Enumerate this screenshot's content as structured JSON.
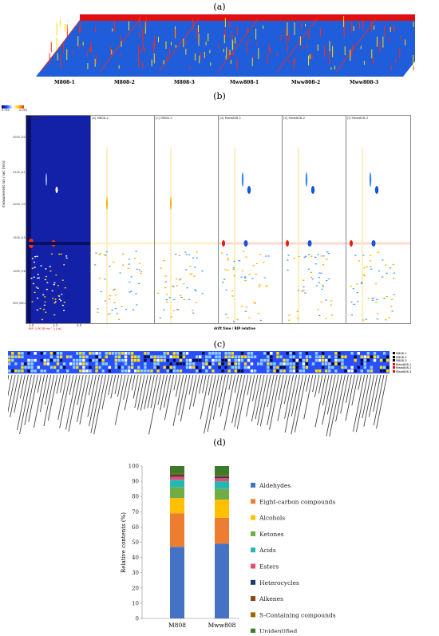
{
  "panels": {
    "a": "(a)",
    "b": "(b)",
    "c": "(c)",
    "d": "(d)"
  },
  "panel_a": {
    "samples": [
      "M808-1",
      "M808-2",
      "M808-3",
      "Mww808-1",
      "Mww808-2",
      "Mww808-3"
    ]
  },
  "panel_b": {
    "colorbar_min": "0.9E0",
    "colorbar_max": "2.0E0",
    "y_label": "measurement run / sec [min]",
    "y_ticks": [
      "3000 (50:00)",
      "2500 (41:40)",
      "2000 (33:20)",
      "1500 (25:00)",
      "1000 (16:40)",
      "500 (08:20)"
    ],
    "x_label": "drift time / RIP relative",
    "x_ticks": [
      "1.0",
      "1.5",
      "2.0"
    ],
    "x_sub": "RIP: 1.00 @ ms^-1 [us]",
    "subplot_titles": [
      "[a] M808-1",
      "[b] M808-2",
      "[c] M808-3",
      "[d] Mww808-1",
      "[e] Mww808-2",
      "[f] Mww808-3"
    ]
  },
  "panel_c": {
    "row_labels": [
      "M808-1",
      "M808-2",
      "M808-3",
      "Mww808-1",
      "Mww808-2",
      "Mww808-3"
    ],
    "row_colors": [
      "#ffffff",
      "#ffffff",
      "#ffffff",
      "#ff2020",
      "#ff2020",
      "#ff2020"
    ]
  },
  "chart_data": {
    "type": "bar",
    "stacked": true,
    "categories": [
      "M808",
      "Mww808"
    ],
    "ylabel": "Relative contents (%)",
    "xlabel": "",
    "ylim": [
      0,
      100
    ],
    "y_ticks": [
      0,
      10,
      20,
      30,
      40,
      50,
      60,
      70,
      80,
      90,
      100
    ],
    "legend_position": "right",
    "series": [
      {
        "name": "Aldehydes",
        "color": "#4472c4",
        "values": [
          47,
          49
        ]
      },
      {
        "name": "Eight-carbon compounds",
        "color": "#ed7d31",
        "values": [
          22,
          17
        ]
      },
      {
        "name": "Alcohols",
        "color": "#ffc000",
        "values": [
          10,
          12
        ]
      },
      {
        "name": "Ketones",
        "color": "#70ad47",
        "values": [
          7,
          7
        ]
      },
      {
        "name": "Acids",
        "color": "#26b8b0",
        "values": [
          5,
          5
        ]
      },
      {
        "name": "Esters",
        "color": "#e74c6f",
        "values": [
          2,
          2
        ]
      },
      {
        "name": "Heterocycles",
        "color": "#1f3864",
        "values": [
          1,
          1
        ]
      },
      {
        "name": "Alkenes",
        "color": "#8b4513",
        "values": [
          0.5,
          0.5
        ]
      },
      {
        "name": "S-Containing compounds",
        "color": "#9c6500",
        "values": [
          0.5,
          0.5
        ]
      },
      {
        "name": "Unidentified",
        "color": "#3d7a2b",
        "values": [
          5,
          6
        ]
      }
    ]
  }
}
